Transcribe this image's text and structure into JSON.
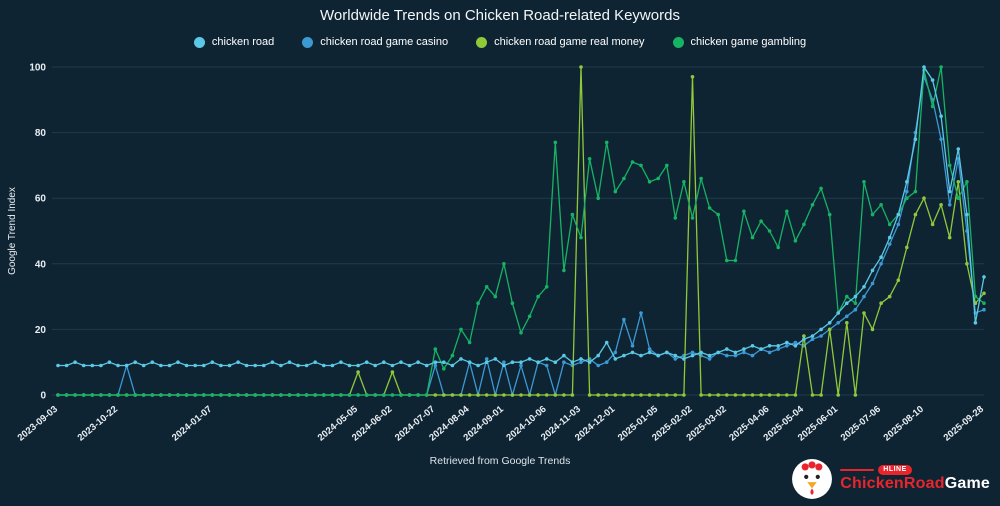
{
  "page": {
    "title": "Worldwide Trends on Chicken Road-related Keywords",
    "caption": "Retrieved from Google Trends",
    "background": "#0f2433",
    "grid_color": "#1f3b4a",
    "axis_text_color": "#e8eef2"
  },
  "logo": {
    "badge": "HLINE",
    "brand_primary": "ChickenRoad",
    "brand_secondary": "Game",
    "accent": "#e8252c"
  },
  "chart_data": {
    "type": "line",
    "title": "Worldwide Trends on Chicken Road-related Keywords",
    "xlabel": "",
    "ylabel": "Google Trend Index",
    "ylim": [
      0,
      100
    ],
    "yticks": [
      0,
      20,
      40,
      60,
      80,
      100
    ],
    "grid": "horizontal",
    "legend_position": "top",
    "x_start": "2023-09-03",
    "x_end": "2025-09-28",
    "x_interval": "weekly",
    "n_points": 109,
    "x_ticks": [
      {
        "label": "2023-09-03",
        "week": 0
      },
      {
        "label": "2023-10-22",
        "week": 7
      },
      {
        "label": "2024-01-07",
        "week": 18
      },
      {
        "label": "2024-05-05",
        "week": 35
      },
      {
        "label": "2024-06-02",
        "week": 39
      },
      {
        "label": "2024-07-07",
        "week": 44
      },
      {
        "label": "2024-08-04",
        "week": 48
      },
      {
        "label": "2024-09-01",
        "week": 52
      },
      {
        "label": "2024-10-06",
        "week": 57
      },
      {
        "label": "2024-11-03",
        "week": 61
      },
      {
        "label": "2024-12-01",
        "week": 65
      },
      {
        "label": "2025-01-05",
        "week": 70
      },
      {
        "label": "2025-02-02",
        "week": 74
      },
      {
        "label": "2025-03-02",
        "week": 78
      },
      {
        "label": "2025-04-06",
        "week": 83
      },
      {
        "label": "2025-05-04",
        "week": 87
      },
      {
        "label": "2025-06-01",
        "week": 91
      },
      {
        "label": "2025-07-06",
        "week": 96
      },
      {
        "label": "2025-08-10",
        "week": 101
      },
      {
        "label": "2025-09-28",
        "week": 108
      }
    ],
    "series": [
      {
        "name": "chicken road",
        "color": "#5bc8e6",
        "values": [
          9,
          9,
          10,
          9,
          9,
          9,
          10,
          9,
          9,
          10,
          9,
          10,
          9,
          9,
          10,
          9,
          9,
          9,
          10,
          9,
          9,
          10,
          9,
          9,
          9,
          10,
          9,
          10,
          9,
          9,
          10,
          9,
          9,
          10,
          9,
          9,
          10,
          9,
          10,
          9,
          10,
          9,
          10,
          9,
          10,
          10,
          9,
          11,
          10,
          9,
          10,
          11,
          9,
          10,
          10,
          11,
          10,
          11,
          10,
          12,
          10,
          11,
          10,
          12,
          16,
          11,
          12,
          13,
          12,
          13,
          12,
          13,
          12,
          11,
          12,
          13,
          12,
          13,
          14,
          13,
          14,
          15,
          14,
          15,
          15,
          16,
          15,
          17,
          18,
          20,
          22,
          25,
          28,
          30,
          33,
          38,
          42,
          48,
          55,
          65,
          78,
          100,
          96,
          85,
          62,
          75,
          55,
          22,
          36
        ]
      },
      {
        "name": "chicken road game casino",
        "color": "#3b99d4",
        "values": [
          0,
          0,
          0,
          0,
          0,
          0,
          0,
          0,
          9,
          0,
          0,
          0,
          0,
          0,
          0,
          0,
          0,
          0,
          0,
          0,
          0,
          0,
          0,
          0,
          0,
          0,
          0,
          0,
          0,
          0,
          0,
          0,
          0,
          0,
          0,
          0,
          0,
          0,
          0,
          0,
          0,
          0,
          0,
          0,
          9,
          0,
          0,
          0,
          10,
          0,
          11,
          0,
          10,
          0,
          9,
          0,
          10,
          9,
          0,
          10,
          9,
          10,
          11,
          9,
          10,
          13,
          23,
          15,
          25,
          14,
          12,
          13,
          11,
          12,
          13,
          12,
          11,
          13,
          12,
          12,
          13,
          12,
          14,
          13,
          14,
          15,
          16,
          15,
          17,
          18,
          20,
          22,
          24,
          26,
          30,
          34,
          40,
          46,
          52,
          62,
          80,
          97,
          90,
          78,
          58,
          72,
          50,
          25,
          26
        ]
      },
      {
        "name": "chicken road game real money",
        "color": "#8fc93a",
        "values": [
          0,
          0,
          0,
          0,
          0,
          0,
          0,
          0,
          0,
          0,
          0,
          0,
          0,
          0,
          0,
          0,
          0,
          0,
          0,
          0,
          0,
          0,
          0,
          0,
          0,
          0,
          0,
          0,
          0,
          0,
          0,
          0,
          0,
          0,
          0,
          7,
          0,
          0,
          0,
          7,
          0,
          0,
          0,
          0,
          0,
          0,
          0,
          0,
          0,
          0,
          0,
          0,
          0,
          0,
          0,
          0,
          0,
          0,
          0,
          0,
          0,
          100,
          0,
          0,
          0,
          0,
          0,
          0,
          0,
          0,
          0,
          0,
          0,
          0,
          97,
          0,
          0,
          0,
          0,
          0,
          0,
          0,
          0,
          0,
          0,
          0,
          0,
          18,
          0,
          0,
          20,
          0,
          22,
          0,
          25,
          20,
          28,
          30,
          35,
          45,
          55,
          60,
          52,
          58,
          48,
          65,
          40,
          28,
          31
        ]
      },
      {
        "name": "chicken game gambling",
        "color": "#16b364",
        "values": [
          0,
          0,
          0,
          0,
          0,
          0,
          0,
          0,
          0,
          0,
          0,
          0,
          0,
          0,
          0,
          0,
          0,
          0,
          0,
          0,
          0,
          0,
          0,
          0,
          0,
          0,
          0,
          0,
          0,
          0,
          0,
          0,
          0,
          0,
          0,
          0,
          0,
          0,
          0,
          0,
          0,
          0,
          0,
          0,
          14,
          8,
          12,
          20,
          16,
          28,
          33,
          30,
          40,
          28,
          19,
          24,
          30,
          33,
          77,
          38,
          55,
          48,
          72,
          60,
          77,
          62,
          66,
          71,
          70,
          65,
          66,
          70,
          54,
          65,
          54,
          66,
          57,
          55,
          41,
          41,
          56,
          48,
          53,
          50,
          45,
          56,
          47,
          52,
          58,
          63,
          55,
          25,
          30,
          28,
          65,
          55,
          58,
          52,
          55,
          60,
          62,
          99,
          88,
          100,
          70,
          60,
          65,
          30,
          28
        ]
      }
    ]
  }
}
